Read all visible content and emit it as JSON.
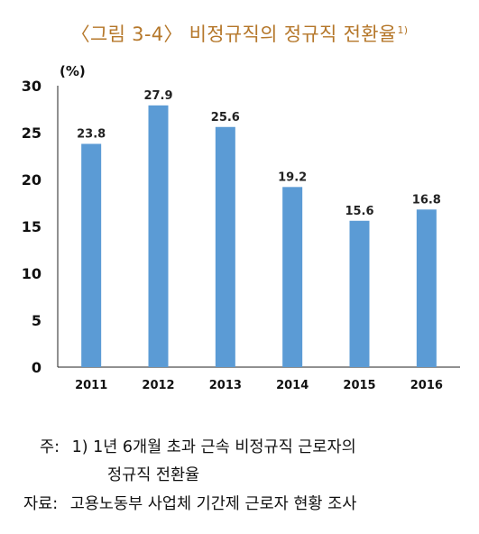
{
  "title": "〈그림 3-4〉 비정규직의 정규직 전환율",
  "title_footnote_mark": "1)",
  "chart_data": {
    "type": "bar",
    "ylabel": "(%)",
    "ylim": [
      0,
      30
    ],
    "yticks": [
      0,
      5,
      10,
      15,
      20,
      25,
      30
    ],
    "categories": [
      "2011",
      "2012",
      "2013",
      "2014",
      "2015",
      "2016"
    ],
    "values": [
      23.8,
      27.9,
      25.6,
      19.2,
      15.6,
      16.8
    ],
    "data_labels": [
      "23.8",
      "27.9",
      "25.6",
      "19.2",
      "15.6",
      "16.8"
    ],
    "bar_color": "#5b9bd5",
    "grid": false
  },
  "notes": {
    "line1_prefix": "주:",
    "line1_text": "1) 1년 6개월 초과 근속 비정규직 근로자의",
    "line2_text": "정규직 전환율",
    "source_prefix": "자료:",
    "source_text": "고용노동부 사업체 기간제 근로자 현황 조사"
  }
}
